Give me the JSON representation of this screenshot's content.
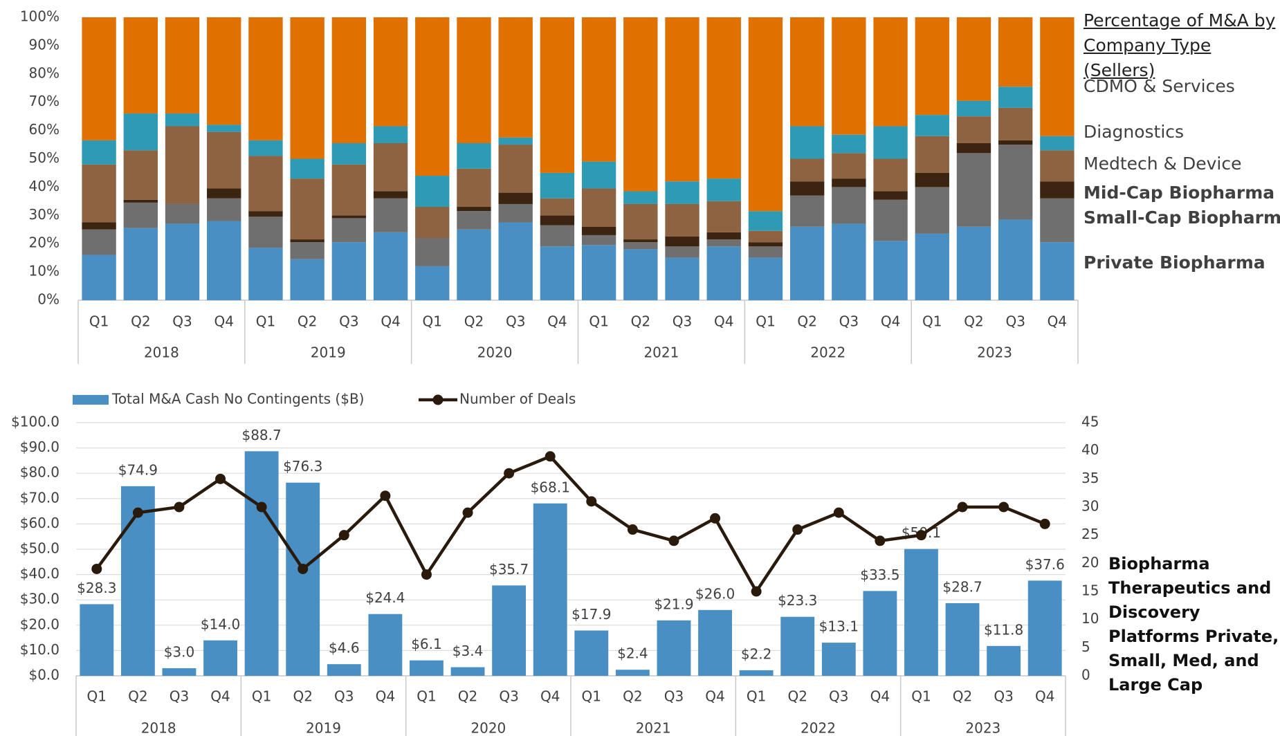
{
  "chart_data": [
    {
      "type": "stacked_bar",
      "title": "Percentage of M&A by Company Type (Sellers)",
      "categories": [
        "Q1",
        "Q2",
        "Q3",
        "Q4",
        "Q1",
        "Q2",
        "Q3",
        "Q4",
        "Q1",
        "Q2",
        "Q3",
        "Q4",
        "Q1",
        "Q2",
        "Q3",
        "Q4",
        "Q1",
        "Q2",
        "Q3",
        "Q4",
        "Q1",
        "Q2",
        "Q3",
        "Q4"
      ],
      "category_groups": [
        "2018",
        "2019",
        "2020",
        "2021",
        "2022",
        "2023"
      ],
      "ylim": [
        0,
        100
      ],
      "yticks": [
        {
          "value": 0,
          "label": "0%"
        },
        {
          "value": 10,
          "label": "10%"
        },
        {
          "value": 20,
          "label": "20%"
        },
        {
          "value": 30,
          "label": "30%"
        },
        {
          "value": 40,
          "label": "40%"
        },
        {
          "value": 50,
          "label": "50%"
        },
        {
          "value": 60,
          "label": "60%"
        },
        {
          "value": 70,
          "label": "70%"
        },
        {
          "value": 80,
          "label": "80%"
        },
        {
          "value": 90,
          "label": "90%"
        },
        {
          "value": 100,
          "label": "100%"
        }
      ],
      "series": [
        {
          "name": "Private Biopharma",
          "color": "#4a8fc4",
          "values": [
            16,
            25.5,
            27,
            28,
            18.5,
            14.5,
            20.5,
            24,
            12,
            25,
            27.5,
            19,
            19.5,
            18,
            15,
            19,
            15,
            26,
            27,
            21,
            23.5,
            26,
            28.5,
            20.5
          ]
        },
        {
          "name": "Small-Cap Biopharma",
          "color": "#6f6f6f",
          "values": [
            9,
            9,
            7,
            8,
            11,
            6,
            8.5,
            12,
            10,
            6.5,
            6.5,
            7.5,
            3.5,
            2.5,
            4,
            2.5,
            4,
            11,
            13,
            14.5,
            16.5,
            26,
            26.5,
            15.5
          ]
        },
        {
          "name": "Mid-Cap Biopharma",
          "color": "#3b2410",
          "values": [
            2.5,
            1,
            0,
            3.5,
            2,
            1,
            1,
            2.5,
            0,
            1.5,
            4,
            3.5,
            3,
            1,
            3.5,
            2.5,
            1.5,
            5,
            3,
            3,
            5,
            3.5,
            1.5,
            6
          ]
        },
        {
          "name": "Medtech & Device",
          "color": "#8d6342",
          "values": [
            20.5,
            17.5,
            27.5,
            20,
            19.5,
            21.5,
            18,
            17,
            11,
            13.5,
            17,
            6,
            13.5,
            12.5,
            11.5,
            11,
            4,
            8,
            9,
            11.5,
            13,
            9.5,
            11.5,
            11
          ]
        },
        {
          "name": "Diagnostics",
          "color": "#2e9ab4",
          "values": [
            8.5,
            13,
            4.5,
            2.5,
            5.5,
            7,
            7.5,
            6,
            11,
            9,
            2.5,
            9,
            9.5,
            4.5,
            8,
            8,
            7,
            11.5,
            6.5,
            11.5,
            7.5,
            5.5,
            7.5,
            5
          ]
        },
        {
          "name": "CDMO & Services",
          "color": "#e07000",
          "values": [
            43.5,
            34,
            34,
            38,
            43.5,
            50,
            44.5,
            38.5,
            56,
            44.5,
            42.5,
            55,
            51,
            61.5,
            58,
            57,
            68.5,
            38.5,
            41.5,
            38.5,
            34.5,
            29.5,
            24.5,
            42
          ]
        }
      ]
    },
    {
      "type": "bar_line",
      "annotation": "Biopharma Therapeutics and Discovery Platforms Private, Small, Med, and Large Cap",
      "categories": [
        "Q1",
        "Q2",
        "Q3",
        "Q4",
        "Q1",
        "Q2",
        "Q3",
        "Q4",
        "Q1",
        "Q2",
        "Q3",
        "Q4",
        "Q1",
        "Q2",
        "Q3",
        "Q4",
        "Q1",
        "Q2",
        "Q3",
        "Q4",
        "Q1",
        "Q2",
        "Q3",
        "Q4"
      ],
      "category_groups": [
        "2018",
        "2019",
        "2020",
        "2021",
        "2022",
        "2023"
      ],
      "ylim": [
        0,
        100
      ],
      "yticks": [
        {
          "value": 0,
          "label": "$0.0"
        },
        {
          "value": 10,
          "label": "$10.0"
        },
        {
          "value": 20,
          "label": "$20.0"
        },
        {
          "value": 30,
          "label": "$30.0"
        },
        {
          "value": 40,
          "label": "$40.0"
        },
        {
          "value": 50,
          "label": "$50.0"
        },
        {
          "value": 60,
          "label": "$60.0"
        },
        {
          "value": 70,
          "label": "$70.0"
        },
        {
          "value": 80,
          "label": "$80.0"
        },
        {
          "value": 90,
          "label": "$90.0"
        },
        {
          "value": 100,
          "label": "$100.0"
        }
      ],
      "y2lim": [
        0,
        45
      ],
      "y2ticks": [
        0,
        5,
        10,
        15,
        20,
        25,
        30,
        35,
        40,
        45
      ],
      "grid": true,
      "series": [
        {
          "name": "Total M&A Cash No Contingents ($B)",
          "type": "bar",
          "color": "#4a8fc4",
          "values": [
            28.3,
            74.9,
            3.0,
            14.0,
            88.7,
            76.3,
            4.6,
            24.4,
            6.1,
            3.4,
            35.7,
            68.1,
            17.9,
            2.4,
            21.9,
            26.0,
            2.2,
            23.3,
            13.1,
            33.5,
            50.1,
            28.7,
            11.8,
            37.6
          ],
          "value_labels": [
            "$28.3",
            "$74.9",
            "$3.0",
            "$14.0",
            "$88.7",
            "$76.3",
            "$4.6",
            "$24.4",
            "$6.1",
            "$3.4",
            "$35.7",
            "$68.1",
            "$17.9",
            "$2.4",
            "$21.9",
            "$26.0",
            "$2.2",
            "$23.3",
            "$13.1",
            "$33.5",
            "$50.1",
            "$28.7",
            "$11.8",
            "$37.6"
          ]
        },
        {
          "name": "Number of Deals",
          "type": "line",
          "axis": "y2",
          "color": "#2a1a0c",
          "values": [
            19,
            29,
            30,
            35,
            30,
            19,
            25,
            32,
            18,
            29,
            36,
            39,
            31,
            26,
            24,
            28,
            15,
            26,
            29,
            24,
            25,
            30,
            30,
            27
          ]
        }
      ]
    }
  ]
}
